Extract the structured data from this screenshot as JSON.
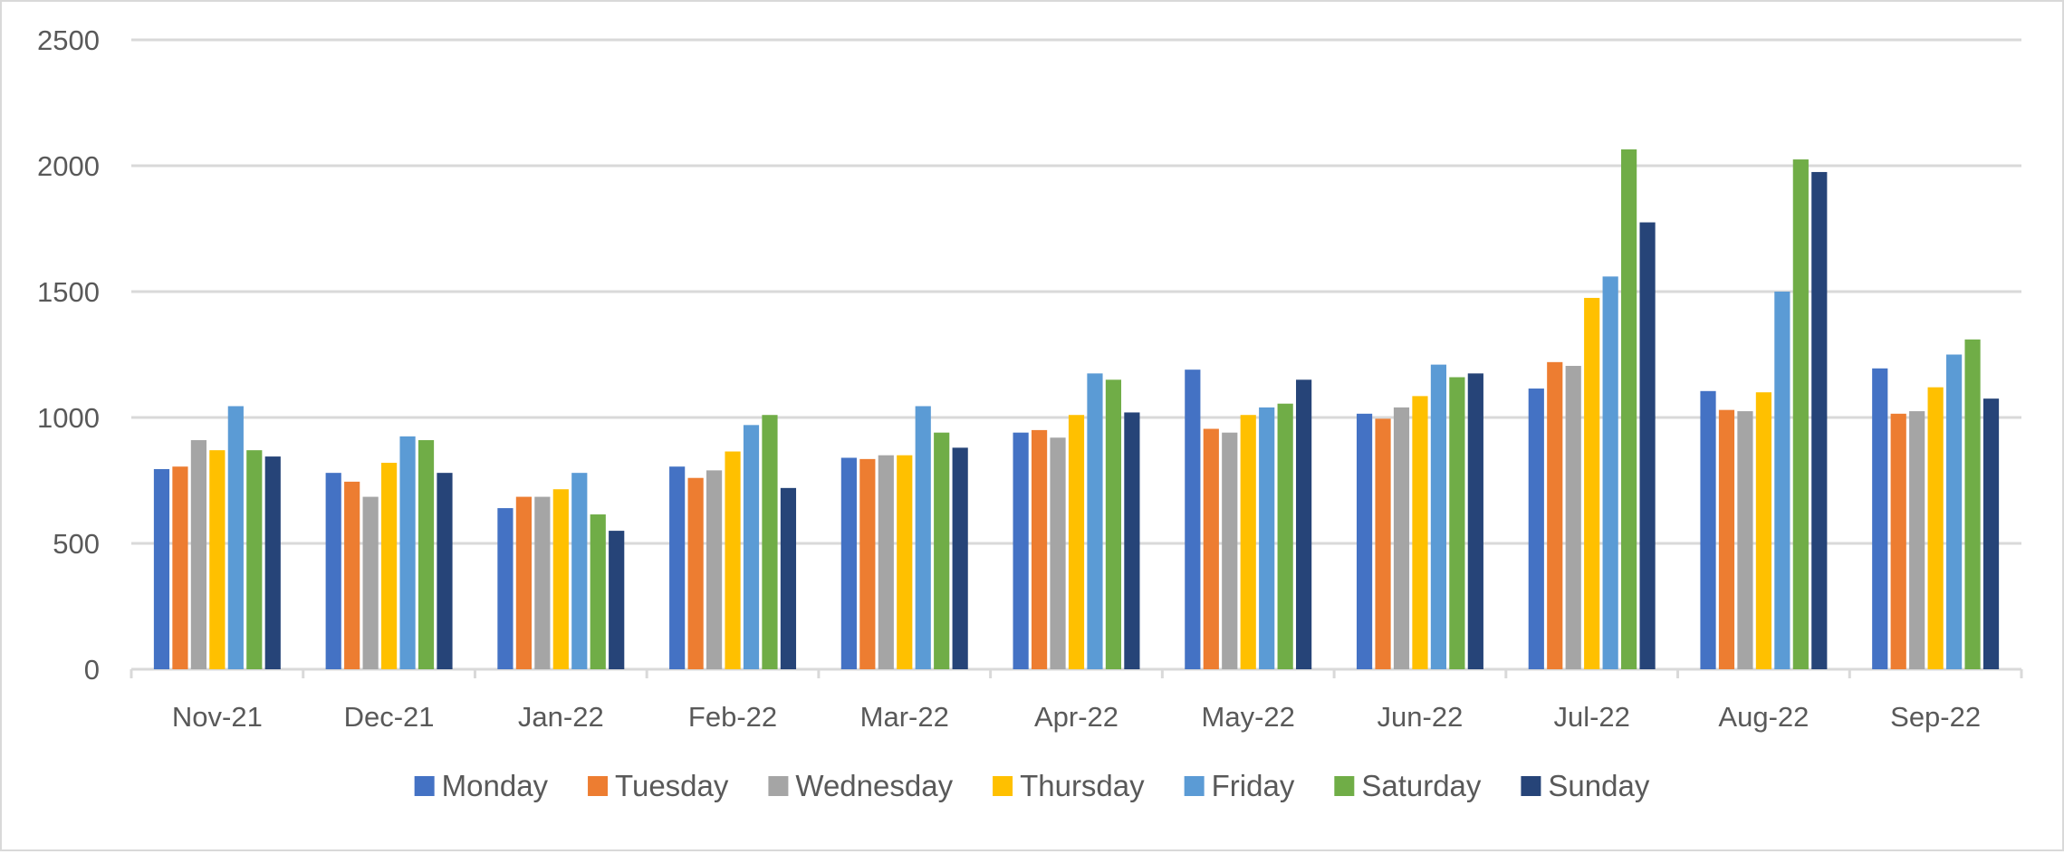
{
  "chart_data": {
    "type": "bar",
    "title": "",
    "xlabel": "",
    "ylabel": "",
    "ylim": [
      0,
      2500
    ],
    "yticks": [
      0,
      500,
      1000,
      1500,
      2000,
      2500
    ],
    "grid": true,
    "legend_position": "bottom",
    "categories": [
      "Nov-21",
      "Dec-21",
      "Jan-22",
      "Feb-22",
      "Mar-22",
      "Apr-22",
      "May-22",
      "Jun-22",
      "Jul-22",
      "Aug-22",
      "Sep-22"
    ],
    "series": [
      {
        "name": "Monday",
        "color": "#4472c4",
        "values": [
          795,
          780,
          640,
          805,
          840,
          940,
          1190,
          1015,
          1115,
          1105,
          1195
        ]
      },
      {
        "name": "Tuesday",
        "color": "#ed7d31",
        "values": [
          805,
          745,
          685,
          760,
          835,
          950,
          955,
          995,
          1220,
          1030,
          1015
        ]
      },
      {
        "name": "Wednesday",
        "color": "#a5a5a5",
        "values": [
          910,
          685,
          685,
          790,
          850,
          920,
          940,
          1040,
          1205,
          1025,
          1025
        ]
      },
      {
        "name": "Thursday",
        "color": "#ffc000",
        "values": [
          870,
          820,
          715,
          865,
          850,
          1010,
          1010,
          1085,
          1475,
          1100,
          1120
        ]
      },
      {
        "name": "Friday",
        "color": "#5b9bd5",
        "values": [
          1045,
          925,
          780,
          970,
          1045,
          1175,
          1040,
          1210,
          1560,
          1500,
          1250
        ]
      },
      {
        "name": "Saturday",
        "color": "#70ad47",
        "values": [
          870,
          910,
          615,
          1010,
          940,
          1150,
          1055,
          1160,
          2065,
          2025,
          1310
        ]
      },
      {
        "name": "Sunday",
        "color": "#264478",
        "values": [
          845,
          780,
          550,
          720,
          880,
          1020,
          1150,
          1175,
          1775,
          1975,
          1075
        ]
      }
    ]
  }
}
